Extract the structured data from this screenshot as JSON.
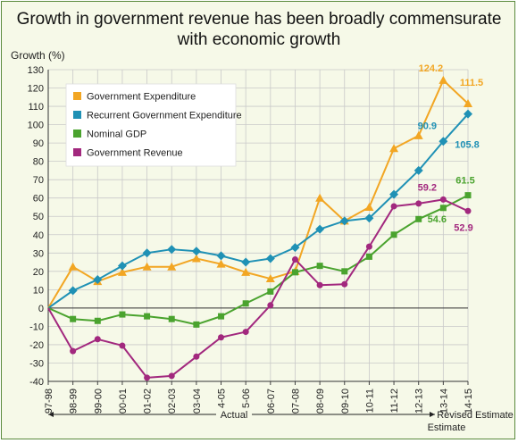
{
  "chart_data": {
    "type": "line",
    "title": "Growth in government revenue has been broadly commensurate with economic growth",
    "title_lines": [
      "Growth in government revenue has been broadly commensurate",
      "with economic growth"
    ],
    "ylabel": "Growth (%)",
    "ylim": [
      -40,
      130
    ],
    "yticks": [
      130,
      120,
      110,
      100,
      90,
      80,
      70,
      60,
      50,
      40,
      30,
      20,
      10,
      0,
      -10,
      -20,
      -30,
      -40
    ],
    "categories": [
      "97-98",
      "98-99",
      "99-00",
      "00-01",
      "01-02",
      "02-03",
      "03-04",
      "04-05",
      "05-06",
      "06-07",
      "07-08",
      "08-09",
      "09-10",
      "10-11",
      "11-12",
      "12-13",
      "13-14",
      "14-15"
    ],
    "actual_label": "Actual",
    "revised_label": "Revised Estimate",
    "estimate_label": "Estimate",
    "grid": true,
    "legend_position": "top-left",
    "series": [
      {
        "name": "Government Expenditure",
        "color": "#f2a623",
        "marker": "triangle",
        "values": [
          0,
          22.5,
          14.5,
          19.5,
          22.5,
          22.5,
          27,
          24,
          19.5,
          16,
          20,
          60,
          47.5,
          55,
          87,
          94,
          124.2,
          111.5
        ]
      },
      {
        "name": "Recurrent Government Expenditure",
        "color": "#1f91b5",
        "marker": "diamond",
        "values": [
          0,
          9.5,
          15.5,
          23,
          30,
          32,
          31,
          28.5,
          25,
          27,
          33,
          43,
          47.5,
          49,
          62,
          75,
          90.9,
          105.8
        ]
      },
      {
        "name": "Nominal GDP",
        "color": "#4aa32e",
        "marker": "square",
        "values": [
          0,
          -6,
          -7,
          -3.5,
          -4.5,
          -6,
          -9,
          -4.5,
          2.5,
          9,
          19.5,
          23,
          20,
          28,
          40,
          48.5,
          54.6,
          61.5
        ]
      },
      {
        "name": "Government Revenue",
        "color": "#a2287e",
        "marker": "circle",
        "values": [
          0,
          -23.5,
          -17,
          -20.5,
          -38,
          -37,
          -26.5,
          -16,
          -13,
          1.5,
          26.5,
          12.5,
          13,
          33.5,
          55.5,
          57,
          59.2,
          52.9
        ]
      }
    ],
    "annotations": [
      {
        "series": 0,
        "index": 16,
        "text": "124.2"
      },
      {
        "series": 0,
        "index": 17,
        "text": "111.5"
      },
      {
        "series": 1,
        "index": 16,
        "text": "90.9"
      },
      {
        "series": 1,
        "index": 17,
        "text": "105.8"
      },
      {
        "series": 2,
        "index": 16,
        "text": "54.6"
      },
      {
        "series": 2,
        "index": 17,
        "text": "61.5"
      },
      {
        "series": 3,
        "index": 16,
        "text": "59.2"
      },
      {
        "series": 3,
        "index": 17,
        "text": "52.9"
      }
    ]
  }
}
